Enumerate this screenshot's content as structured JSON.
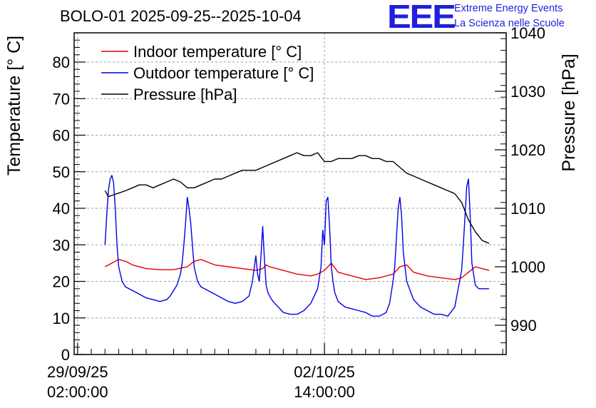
{
  "chart_data": {
    "type": "line",
    "title": "BOLO-01 2025-09-25--2025-10-04",
    "ylabel_left": "Temperature [° C]",
    "ylabel_right": "Pressure [hPa]",
    "ylim_left": [
      0,
      88
    ],
    "ylim_right": [
      985,
      1040
    ],
    "yticks_left": [
      0,
      10,
      20,
      30,
      40,
      50,
      60,
      70,
      80
    ],
    "yticks_right": [
      990,
      1000,
      1010,
      1020,
      1030,
      1040
    ],
    "xlim_hours": [
      -1,
      125
    ],
    "xticks": [
      {
        "h": 0,
        "line1": "29/09/25",
        "line2": "02:00:00"
      },
      {
        "h": 72,
        "line1": "02/10/25",
        "line2": "14:00:00"
      }
    ],
    "grid": true,
    "legend": {
      "placement": "top-left",
      "entries": [
        {
          "label": "Indoor temperature [° C]",
          "color": "#e60000"
        },
        {
          "label": "Outdoor temperature [° C]",
          "color": "#0000e6"
        },
        {
          "label": "Pressure [hPa]",
          "color": "#000000"
        }
      ]
    },
    "series": [
      {
        "name": "Indoor temperature [° C]",
        "axis": "left",
        "color": "#e60000",
        "x": [
          8,
          10,
          12,
          14,
          16,
          20,
          24,
          28,
          32,
          34,
          36,
          40,
          44,
          48,
          52,
          54,
          55,
          56,
          60,
          64,
          68,
          70,
          72,
          74,
          76,
          80,
          84,
          88,
          92,
          94,
          96,
          98,
          102,
          106,
          110,
          112,
          114,
          116,
          118,
          120
        ],
        "y": [
          24,
          25,
          26,
          25.5,
          24.5,
          23.5,
          23.2,
          23.2,
          24,
          25.5,
          26,
          24.5,
          24,
          23.5,
          23,
          23.5,
          24.5,
          24,
          23,
          22,
          21.5,
          22,
          23,
          25,
          22.5,
          21.5,
          20.5,
          21,
          22,
          24,
          24.5,
          22.5,
          21.5,
          21,
          20.5,
          21,
          22.5,
          24,
          23.5,
          23
        ]
      },
      {
        "name": "Outdoor temperature [° C]",
        "axis": "left",
        "color": "#0000e6",
        "x": [
          8,
          8.5,
          9,
          9.5,
          10,
          10.5,
          11,
          11.5,
          12,
          13,
          14,
          16,
          18,
          20,
          22,
          24,
          26,
          27,
          28,
          29,
          30,
          30.5,
          31,
          31.5,
          32,
          32.5,
          33,
          33.5,
          34,
          35,
          36,
          37,
          38,
          40,
          42,
          44,
          46,
          48,
          50,
          51,
          52,
          52.5,
          53,
          53.5,
          54,
          54.5,
          55,
          55.5,
          56,
          57,
          58,
          59,
          60,
          62,
          64,
          66,
          68,
          70,
          71,
          71.5,
          72,
          72.5,
          73,
          73.5,
          74,
          74.5,
          75,
          76,
          78,
          80,
          82,
          84,
          86,
          88,
          90,
          91,
          92,
          92.5,
          93,
          93.5,
          94,
          94.5,
          95,
          96,
          98,
          100,
          102,
          104,
          106,
          108,
          110,
          111,
          112,
          112.5,
          113,
          113.5,
          114,
          114.5,
          115,
          116,
          117,
          118,
          119,
          120
        ],
        "y": [
          30,
          38,
          45,
          48,
          49,
          47,
          40,
          30,
          24,
          20,
          18.5,
          17.5,
          16.5,
          15.5,
          15,
          14.5,
          15,
          16,
          17.5,
          19,
          22,
          25,
          30,
          36,
          43,
          40,
          36,
          30,
          24,
          20,
          18.5,
          18,
          17.5,
          16.5,
          15.5,
          14.5,
          14,
          14.5,
          16,
          20,
          27,
          22,
          20,
          27,
          35,
          26,
          19,
          17,
          16,
          14.5,
          13.5,
          12.5,
          11.5,
          11,
          11,
          12,
          14,
          18,
          24,
          34,
          30,
          42,
          43,
          35,
          24,
          20,
          17,
          14.5,
          13,
          12.5,
          12,
          11.5,
          10.5,
          10.5,
          11.5,
          14,
          20,
          24,
          32,
          40,
          43,
          38,
          28,
          20,
          15,
          13,
          12,
          11,
          11,
          10.5,
          13,
          18,
          23,
          30,
          38,
          46,
          48,
          38,
          25,
          19,
          18,
          18,
          18,
          18
        ]
      },
      {
        "name": "Pressure [hPa]",
        "axis": "right",
        "color": "#000000",
        "x": [
          8,
          9,
          10,
          11,
          12,
          14,
          16,
          18,
          20,
          22,
          24,
          26,
          28,
          30,
          32,
          34,
          36,
          38,
          40,
          42,
          44,
          46,
          48,
          50,
          52,
          54,
          56,
          58,
          60,
          62,
          64,
          66,
          68,
          70,
          72,
          74,
          76,
          78,
          80,
          82,
          84,
          86,
          88,
          90,
          92,
          94,
          96,
          98,
          100,
          102,
          104,
          106,
          108,
          110,
          112,
          114,
          116,
          118,
          120
        ],
        "y": [
          1013,
          1012,
          1012.2,
          1012.4,
          1012.6,
          1013,
          1013.5,
          1014,
          1014,
          1013.5,
          1014,
          1014.5,
          1015,
          1014.5,
          1013.5,
          1013.5,
          1014,
          1014.5,
          1015,
          1015,
          1015.5,
          1016,
          1016.5,
          1016.5,
          1016.5,
          1017,
          1017.5,
          1018,
          1018.5,
          1019,
          1019.5,
          1019,
          1019,
          1019.5,
          1018,
          1018,
          1018.5,
          1018.5,
          1018.5,
          1019,
          1019,
          1018.5,
          1018.5,
          1018,
          1018,
          1017,
          1016,
          1015.5,
          1015,
          1014.5,
          1014,
          1013.5,
          1013,
          1012.5,
          1011,
          1008,
          1006,
          1004.5,
          1004
        ]
      }
    ]
  },
  "logo": {
    "mark": "EEE",
    "line1": "Extreme Energy Events",
    "line2": "La Scienza nelle Scuole"
  }
}
